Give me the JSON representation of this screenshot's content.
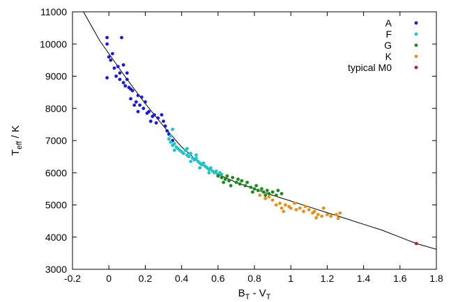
{
  "chart_data": {
    "type": "scatter",
    "title": "",
    "xlabel": {
      "base": "B",
      "sub1": "T",
      "mid": " - V",
      "sub2": "T"
    },
    "ylabel": {
      "base": "T",
      "sub": "eff",
      "rest": " / K"
    },
    "xlim": [
      -0.2,
      1.8
    ],
    "ylim": [
      3000,
      11000
    ],
    "x_ticks": [
      -0.2,
      0,
      0.2,
      0.4,
      0.6,
      0.8,
      1,
      1.2,
      1.4,
      1.6,
      1.8
    ],
    "x_tick_labels": [
      "-0.2",
      "0",
      "0.2",
      "0.4",
      "0.6",
      "0.8",
      "1",
      "1.2",
      "1.4",
      "1.6",
      "1.8"
    ],
    "y_ticks": [
      3000,
      4000,
      5000,
      6000,
      7000,
      8000,
      9000,
      10000,
      11000
    ],
    "y_tick_labels": [
      "3000",
      "4000",
      "5000",
      "6000",
      "7000",
      "8000",
      "9000",
      "10000",
      "11000"
    ],
    "grid": false,
    "legend_position": "top-right",
    "colors": {
      "A": "#1a1ad6",
      "F": "#1fc4c4",
      "G": "#1a8a1a",
      "K": "#e8901a",
      "typical M0": "#c01a1a",
      "fit": "#000000"
    },
    "series": [
      {
        "name": "A",
        "color": "#1a1ad6",
        "points": [
          [
            -0.01,
            10200
          ],
          [
            0.07,
            10200
          ],
          [
            -0.01,
            10000
          ],
          [
            0.0,
            9600
          ],
          [
            0.01,
            9500
          ],
          [
            0.02,
            9700
          ],
          [
            0.05,
            9300
          ],
          [
            0.06,
            9100
          ],
          [
            0.03,
            9250
          ],
          [
            0.08,
            9350
          ],
          [
            -0.01,
            8950
          ],
          [
            0.04,
            9000
          ],
          [
            0.06,
            8900
          ],
          [
            0.08,
            8800
          ],
          [
            0.1,
            9100
          ],
          [
            0.09,
            8700
          ],
          [
            0.11,
            8650
          ],
          [
            0.12,
            8600
          ],
          [
            0.1,
            8900
          ],
          [
            0.13,
            8550
          ],
          [
            0.12,
            8300
          ],
          [
            0.16,
            8400
          ],
          [
            0.18,
            8350
          ],
          [
            0.17,
            8100
          ],
          [
            0.19,
            8000
          ],
          [
            0.21,
            7850
          ],
          [
            0.2,
            8200
          ],
          [
            0.22,
            7900
          ],
          [
            0.24,
            7750
          ],
          [
            0.23,
            7600
          ],
          [
            0.25,
            7800
          ],
          [
            0.27,
            7700
          ],
          [
            0.29,
            7800
          ],
          [
            0.3,
            7600
          ],
          [
            0.32,
            7300
          ],
          [
            0.33,
            7200
          ],
          [
            0.35,
            7000
          ],
          [
            0.14,
            8100
          ],
          [
            0.16,
            7900
          ],
          [
            0.26,
            7550
          ],
          [
            0.15,
            8200
          ],
          [
            0.31,
            7450
          ]
        ]
      },
      {
        "name": "F",
        "color": "#1fc4c4",
        "points": [
          [
            0.33,
            7050
          ],
          [
            0.34,
            6950
          ],
          [
            0.35,
            6850
          ],
          [
            0.36,
            6900
          ],
          [
            0.37,
            6800
          ],
          [
            0.38,
            6750
          ],
          [
            0.39,
            6700
          ],
          [
            0.4,
            6650
          ],
          [
            0.41,
            6600
          ],
          [
            0.42,
            6700
          ],
          [
            0.43,
            6550
          ],
          [
            0.44,
            6500
          ],
          [
            0.45,
            6600
          ],
          [
            0.46,
            6450
          ],
          [
            0.47,
            6400
          ],
          [
            0.48,
            6450
          ],
          [
            0.49,
            6350
          ],
          [
            0.5,
            6300
          ],
          [
            0.51,
            6250
          ],
          [
            0.52,
            6300
          ],
          [
            0.53,
            6200
          ],
          [
            0.54,
            6150
          ],
          [
            0.55,
            6100
          ],
          [
            0.56,
            6150
          ],
          [
            0.57,
            6050
          ],
          [
            0.58,
            6000
          ],
          [
            0.59,
            6050
          ],
          [
            0.6,
            5950
          ],
          [
            0.61,
            6000
          ],
          [
            0.62,
            5950
          ],
          [
            0.34,
            7150
          ],
          [
            0.36,
            6700
          ],
          [
            0.45,
            6350
          ],
          [
            0.5,
            6150
          ],
          [
            0.55,
            6000
          ],
          [
            0.35,
            7350
          ],
          [
            0.43,
            6750
          ],
          [
            0.48,
            6550
          ]
        ]
      },
      {
        "name": "G",
        "color": "#1a8a1a",
        "points": [
          [
            0.6,
            5900
          ],
          [
            0.62,
            5850
          ],
          [
            0.64,
            5800
          ],
          [
            0.65,
            5900
          ],
          [
            0.66,
            5750
          ],
          [
            0.68,
            5850
          ],
          [
            0.7,
            5700
          ],
          [
            0.72,
            5650
          ],
          [
            0.73,
            5750
          ],
          [
            0.75,
            5600
          ],
          [
            0.76,
            5700
          ],
          [
            0.78,
            5550
          ],
          [
            0.8,
            5500
          ],
          [
            0.82,
            5450
          ],
          [
            0.84,
            5500
          ],
          [
            0.85,
            5400
          ],
          [
            0.87,
            5450
          ],
          [
            0.88,
            5350
          ],
          [
            0.9,
            5400
          ],
          [
            0.92,
            5300
          ],
          [
            0.93,
            5450
          ],
          [
            0.95,
            5350
          ],
          [
            0.67,
            5600
          ],
          [
            0.71,
            5800
          ],
          [
            0.79,
            5400
          ],
          [
            0.86,
            5300
          ],
          [
            0.63,
            5700
          ],
          [
            0.81,
            5600
          ]
        ]
      },
      {
        "name": "K",
        "color": "#e8901a",
        "points": [
          [
            0.83,
            5300
          ],
          [
            0.86,
            5200
          ],
          [
            0.88,
            5250
          ],
          [
            0.9,
            5150
          ],
          [
            0.92,
            5000
          ],
          [
            0.94,
            5050
          ],
          [
            0.95,
            4900
          ],
          [
            0.97,
            5000
          ],
          [
            0.99,
            4950
          ],
          [
            1.0,
            4900
          ],
          [
            1.02,
            5050
          ],
          [
            1.03,
            4850
          ],
          [
            1.05,
            4900
          ],
          [
            1.07,
            4800
          ],
          [
            1.1,
            4850
          ],
          [
            1.12,
            4750
          ],
          [
            1.13,
            4800
          ],
          [
            1.15,
            4700
          ],
          [
            1.17,
            4650
          ],
          [
            1.2,
            4700
          ],
          [
            1.22,
            4650
          ],
          [
            1.25,
            4700
          ],
          [
            1.27,
            4750
          ],
          [
            1.26,
            4580
          ],
          [
            1.18,
            4900
          ],
          [
            1.08,
            4950
          ],
          [
            0.96,
            4800
          ],
          [
            1.14,
            4600
          ]
        ]
      },
      {
        "name": "typical M0",
        "color": "#c01a1a",
        "points": [
          [
            1.69,
            3800
          ]
        ]
      }
    ],
    "fit_curve": {
      "form": "exponential",
      "points": [
        [
          -0.14,
          11000
        ],
        [
          -0.05,
          10100
        ],
        [
          0.0,
          9700
        ],
        [
          0.1,
          8900
        ],
        [
          0.2,
          8150
        ],
        [
          0.3,
          7450
        ],
        [
          0.4,
          6800
        ],
        [
          0.5,
          6300
        ],
        [
          0.6,
          5950
        ],
        [
          0.7,
          5700
        ],
        [
          0.8,
          5500
        ],
        [
          0.9,
          5300
        ],
        [
          1.0,
          5120
        ],
        [
          1.1,
          4940
        ],
        [
          1.2,
          4760
        ],
        [
          1.3,
          4580
        ],
        [
          1.4,
          4400
        ],
        [
          1.5,
          4220
        ],
        [
          1.6,
          4000
        ],
        [
          1.69,
          3800
        ],
        [
          1.8,
          3620
        ]
      ]
    }
  }
}
